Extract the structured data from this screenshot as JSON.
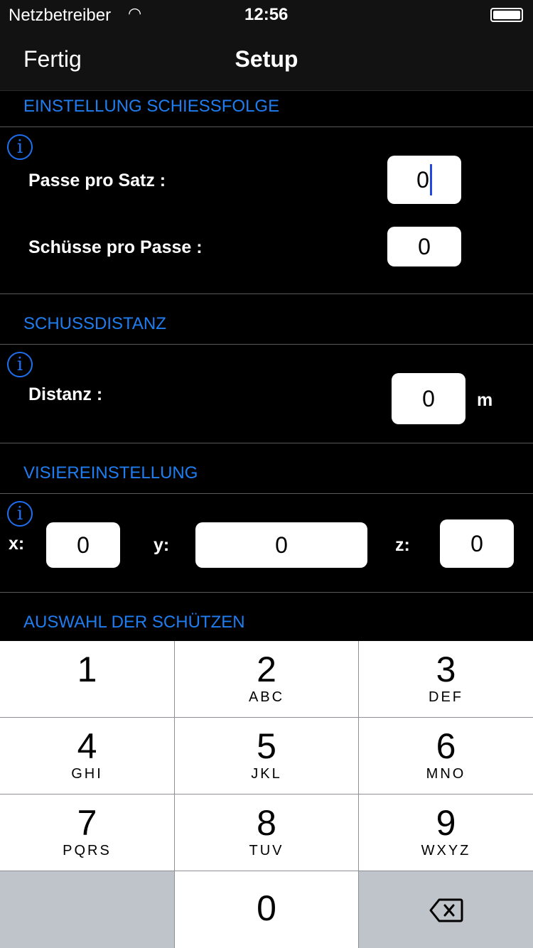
{
  "status": {
    "carrier": "Netzbetreiber",
    "time": "12:56"
  },
  "nav": {
    "done": "Fertig",
    "title": "Setup"
  },
  "sections": {
    "sequence": {
      "header": "EINSTELLUNG SCHIESSFOLGE",
      "ends_label": "Passe pro Satz :",
      "ends_value": "0",
      "shots_label": "Schüsse pro Passe :",
      "shots_value": "0"
    },
    "distance": {
      "header": "SCHUSSDISTANZ",
      "label": "Distanz :",
      "value": "0",
      "unit": "m"
    },
    "sight": {
      "header": "VISIEREINSTELLUNG",
      "x_label": "x:",
      "x_value": "0",
      "y_label": "y:",
      "y_value": "0",
      "z_label": "z:",
      "z_value": "0"
    },
    "archers": {
      "header": "AUSWAHL DER SCHÜTZEN"
    }
  },
  "info_icon": "i",
  "keypad": [
    {
      "n": "1",
      "l": ""
    },
    {
      "n": "2",
      "l": "ABC"
    },
    {
      "n": "3",
      "l": "DEF"
    },
    {
      "n": "4",
      "l": "GHI"
    },
    {
      "n": "5",
      "l": "JKL"
    },
    {
      "n": "6",
      "l": "MNO"
    },
    {
      "n": "7",
      "l": "PQRS"
    },
    {
      "n": "8",
      "l": "TUV"
    },
    {
      "n": "9",
      "l": "WXYZ"
    },
    {
      "n": "0",
      "l": ""
    }
  ],
  "colors": {
    "accent": "#1f7df0",
    "cursor": "#2447e0"
  }
}
